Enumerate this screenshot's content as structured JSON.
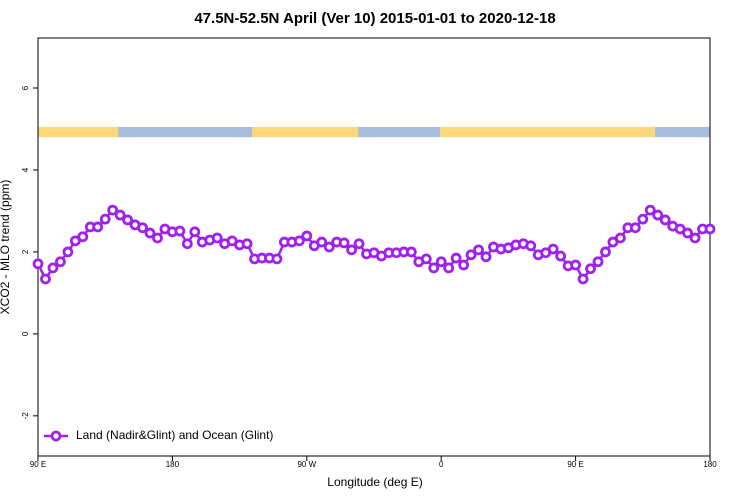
{
  "chart_data": {
    "type": "line",
    "title": "47.5N-52.5N April (Ver 10)   2015-01-01 to 2020-12-18",
    "xlabel": "Longitude (deg E)",
    "ylabel": "XCO2 - MLO trend (ppm)",
    "x": [
      90,
      95,
      100,
      105,
      110,
      115,
      120,
      125,
      130,
      135,
      140,
      145,
      150,
      155,
      160,
      165,
      170,
      175,
      180,
      185,
      190,
      195,
      200,
      205,
      210,
      215,
      220,
      225,
      230,
      235,
      240,
      245,
      250,
      255,
      260,
      265,
      270,
      275,
      280,
      285,
      290,
      295,
      300,
      305,
      310,
      315,
      320,
      325,
      330,
      335,
      340,
      345,
      350,
      355,
      360,
      365,
      370,
      375,
      380,
      385,
      390,
      395,
      400,
      405,
      410,
      415,
      420,
      425,
      430,
      435,
      440,
      445,
      450,
      455,
      460,
      465,
      470,
      475,
      480,
      485,
      490,
      495,
      500,
      505,
      510,
      515,
      520,
      525,
      530,
      535,
      540
    ],
    "series": [
      {
        "name": "Land (Nadir&Glint) and Ocean (Glint)",
        "color": "#a020f0",
        "values": [
          1.71,
          1.34,
          1.61,
          1.76,
          2.0,
          2.27,
          2.37,
          2.61,
          2.61,
          2.8,
          3.02,
          2.9,
          2.78,
          2.66,
          2.59,
          2.46,
          2.34,
          2.56,
          2.49,
          2.51,
          2.2,
          2.49,
          2.24,
          2.29,
          2.34,
          2.2,
          2.27,
          2.17,
          2.2,
          1.83,
          1.85,
          1.85,
          1.83,
          2.24,
          2.24,
          2.27,
          2.39,
          2.15,
          2.24,
          2.12,
          2.24,
          2.22,
          2.05,
          2.2,
          1.95,
          1.98,
          1.9,
          1.98,
          1.98,
          2.0,
          2.0,
          1.76,
          1.83,
          1.61,
          1.76,
          1.61,
          1.85,
          1.68,
          1.93,
          2.05,
          1.88,
          2.12,
          2.07,
          2.1,
          2.17,
          2.2,
          2.15,
          1.93,
          1.98,
          2.07,
          1.9,
          1.66,
          1.68,
          1.34,
          1.59,
          1.76,
          2.0,
          2.24,
          2.34,
          2.59,
          2.59,
          2.8,
          3.02,
          2.9,
          2.78,
          2.63,
          2.56,
          2.46,
          2.34,
          2.56,
          2.56
        ]
      }
    ],
    "land_ocean_band": {
      "range": [
        4.8,
        5.05
      ],
      "segments": [
        {
          "start": 90,
          "end": 143.6,
          "color": "#fcd87a"
        },
        {
          "start": 143.6,
          "end": 233.3,
          "color": "#a7bedf"
        },
        {
          "start": 233.3,
          "end": 304.3,
          "color": "#fcd87a"
        },
        {
          "start": 304.3,
          "end": 359.2,
          "color": "#a7bedf"
        },
        {
          "start": 359.2,
          "end": 503.2,
          "color": "#fcd87a"
        },
        {
          "start": 503.2,
          "end": 540,
          "color": "#a7bedf"
        }
      ]
    },
    "xlim": [
      90,
      540
    ],
    "xticks": [
      {
        "value": 90,
        "label": "90 E"
      },
      180,
      {
        "value": 270,
        "label": "90 W"
      },
      {
        "value": 360,
        "label": "0"
      },
      {
        "value": 450,
        "label": "90 E"
      },
      {
        "value": 540,
        "label": "180"
      }
    ],
    "ylim": [
      -2.98,
      7.22
    ],
    "yticks": [
      -2,
      0,
      2,
      4,
      6
    ],
    "legend": "bottom-left"
  }
}
